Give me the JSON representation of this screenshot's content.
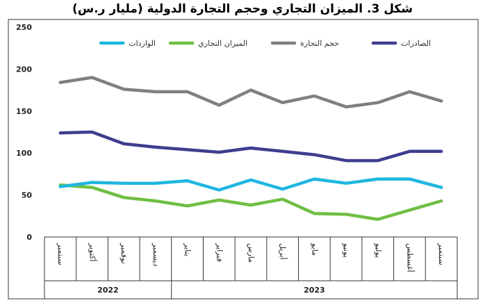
{
  "title": "شكل 3. الميزان التجاري وحجم التجارة الدولية (مليار ر.س)",
  "chart_data": {
    "type": "line",
    "categories": [
      "سبتمبر",
      "أكتوبر",
      "نوفمبر",
      "ديسمبر",
      "يناير",
      "فبراير",
      "مارس",
      "أبريل",
      "مايو",
      "يونيو",
      "يوليو",
      "أغسطس",
      "سبتمبر"
    ],
    "years": [
      {
        "label": "2022",
        "span": 4
      },
      {
        "label": "2023",
        "span": 9
      }
    ],
    "ylim": [
      0,
      250
    ],
    "yticks": [
      0,
      50,
      100,
      150,
      200,
      250
    ],
    "grid": false,
    "legend_position": "top",
    "series": [
      {
        "name": "الصادرات",
        "color": "#3f3d8f",
        "values": [
          124,
          125,
          111,
          107,
          104,
          101,
          106,
          102,
          98,
          91,
          91,
          102,
          102
        ]
      },
      {
        "name": "حجم التجارة",
        "color": "#7f7f7f",
        "values": [
          184,
          190,
          176,
          173,
          173,
          157,
          175,
          160,
          168,
          155,
          160,
          173,
          162
        ]
      },
      {
        "name": "الميزان التجاري",
        "color": "#6fbe44",
        "values": [
          62,
          59,
          47,
          43,
          37,
          44,
          38,
          45,
          28,
          27,
          21,
          32,
          43
        ]
      },
      {
        "name": "الواردات",
        "color": "#1fb6e0",
        "values": [
          60,
          65,
          64,
          64,
          67,
          56,
          68,
          57,
          69,
          64,
          69,
          69,
          59
        ]
      }
    ]
  }
}
